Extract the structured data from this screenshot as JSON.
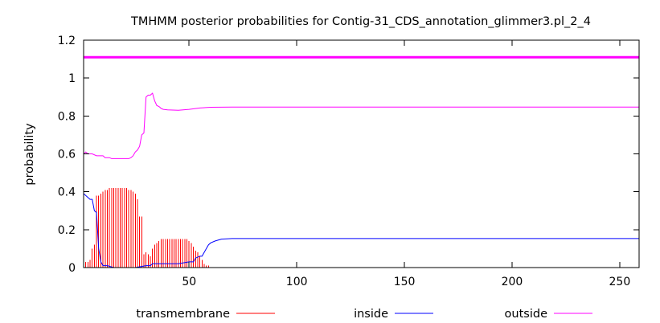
{
  "chart_data": {
    "type": "line",
    "title": "TMHMM posterior probabilities for Contig-31_CDS_annotation_glimmer3.pl_2_4",
    "xlabel": "",
    "ylabel": "probability",
    "xlim": [
      1,
      259
    ],
    "ylim": [
      0,
      1.2
    ],
    "x_ticks": [
      50,
      100,
      150,
      200,
      250
    ],
    "y_ticks": [
      0,
      0.2,
      0.4,
      0.6,
      0.8,
      1,
      1.2
    ],
    "y_tick_labels": [
      "0",
      "0.2",
      "0.4",
      "0.6",
      "0.8",
      "1",
      "1.2"
    ],
    "grid": false,
    "legend_position": "bottom",
    "legend": [
      "transmembrane",
      "inside",
      "outside"
    ],
    "colors": {
      "transmembrane": "#ff0000",
      "inside": "#0000ff",
      "outside": "#ff00ff",
      "topology_bar": "#ff00ff"
    },
    "topology_bar": {
      "y": 1.11,
      "x_start": 1,
      "x_end": 259,
      "label": "outside"
    },
    "series": [
      {
        "name": "transmembrane",
        "style": "impulses",
        "points": [
          [
            1,
            0.02
          ],
          [
            2,
            0.03
          ],
          [
            3,
            0.03
          ],
          [
            4,
            0.04
          ],
          [
            5,
            0.1
          ],
          [
            6,
            0.12
          ],
          [
            7,
            0.38
          ],
          [
            8,
            0.38
          ],
          [
            9,
            0.39
          ],
          [
            10,
            0.4
          ],
          [
            11,
            0.41
          ],
          [
            12,
            0.41
          ],
          [
            13,
            0.42
          ],
          [
            14,
            0.42
          ],
          [
            15,
            0.42
          ],
          [
            16,
            0.42
          ],
          [
            17,
            0.42
          ],
          [
            18,
            0.42
          ],
          [
            19,
            0.42
          ],
          [
            20,
            0.42
          ],
          [
            21,
            0.42
          ],
          [
            22,
            0.41
          ],
          [
            23,
            0.41
          ],
          [
            24,
            0.4
          ],
          [
            25,
            0.39
          ],
          [
            26,
            0.36
          ],
          [
            27,
            0.27
          ],
          [
            28,
            0.27
          ],
          [
            29,
            0.07
          ],
          [
            30,
            0.08
          ],
          [
            31,
            0.07
          ],
          [
            32,
            0.06
          ],
          [
            33,
            0.1
          ],
          [
            34,
            0.12
          ],
          [
            35,
            0.13
          ],
          [
            36,
            0.14
          ],
          [
            37,
            0.15
          ],
          [
            38,
            0.15
          ],
          [
            39,
            0.15
          ],
          [
            40,
            0.15
          ],
          [
            41,
            0.15
          ],
          [
            42,
            0.15
          ],
          [
            43,
            0.15
          ],
          [
            44,
            0.15
          ],
          [
            45,
            0.15
          ],
          [
            46,
            0.15
          ],
          [
            47,
            0.15
          ],
          [
            48,
            0.15
          ],
          [
            49,
            0.15
          ],
          [
            50,
            0.14
          ],
          [
            51,
            0.13
          ],
          [
            52,
            0.11
          ],
          [
            53,
            0.09
          ],
          [
            54,
            0.08
          ],
          [
            55,
            0.06
          ],
          [
            56,
            0.04
          ],
          [
            57,
            0.02
          ],
          [
            58,
            0.01
          ],
          [
            59,
            0.01
          ],
          [
            60,
            0.0
          ]
        ]
      },
      {
        "name": "inside",
        "style": "line",
        "points": [
          [
            1,
            0.39
          ],
          [
            2,
            0.38
          ],
          [
            3,
            0.37
          ],
          [
            4,
            0.36
          ],
          [
            5,
            0.36
          ],
          [
            6,
            0.3
          ],
          [
            7,
            0.29
          ],
          [
            8,
            0.1
          ],
          [
            9,
            0.03
          ],
          [
            10,
            0.01
          ],
          [
            12,
            0.01
          ],
          [
            15,
            0.0
          ],
          [
            20,
            0.0
          ],
          [
            25,
            0.0
          ],
          [
            30,
            0.01
          ],
          [
            32,
            0.01
          ],
          [
            33,
            0.02
          ],
          [
            40,
            0.02
          ],
          [
            45,
            0.02
          ],
          [
            50,
            0.03
          ],
          [
            52,
            0.03
          ],
          [
            53,
            0.05
          ],
          [
            55,
            0.06
          ],
          [
            56,
            0.06
          ],
          [
            57,
            0.08
          ],
          [
            58,
            0.1
          ],
          [
            59,
            0.12
          ],
          [
            60,
            0.13
          ],
          [
            62,
            0.14
          ],
          [
            65,
            0.15
          ],
          [
            70,
            0.153
          ],
          [
            259,
            0.153
          ]
        ]
      },
      {
        "name": "outside",
        "style": "line",
        "points": [
          [
            1,
            0.6
          ],
          [
            2,
            0.61
          ],
          [
            3,
            0.6
          ],
          [
            5,
            0.6
          ],
          [
            7,
            0.59
          ],
          [
            8,
            0.59
          ],
          [
            9,
            0.59
          ],
          [
            10,
            0.59
          ],
          [
            11,
            0.58
          ],
          [
            12,
            0.58
          ],
          [
            13,
            0.58
          ],
          [
            14,
            0.575
          ],
          [
            20,
            0.575
          ],
          [
            22,
            0.575
          ],
          [
            23,
            0.58
          ],
          [
            24,
            0.59
          ],
          [
            25,
            0.61
          ],
          [
            26,
            0.62
          ],
          [
            27,
            0.64
          ],
          [
            28,
            0.7
          ],
          [
            29,
            0.71
          ],
          [
            30,
            0.9
          ],
          [
            31,
            0.91
          ],
          [
            32,
            0.91
          ],
          [
            33,
            0.92
          ],
          [
            34,
            0.88
          ],
          [
            35,
            0.855
          ],
          [
            36,
            0.85
          ],
          [
            37,
            0.84
          ],
          [
            38,
            0.835
          ],
          [
            40,
            0.832
          ],
          [
            45,
            0.83
          ],
          [
            50,
            0.835
          ],
          [
            55,
            0.842
          ],
          [
            60,
            0.846
          ],
          [
            70,
            0.847
          ],
          [
            259,
            0.847
          ]
        ]
      }
    ]
  }
}
